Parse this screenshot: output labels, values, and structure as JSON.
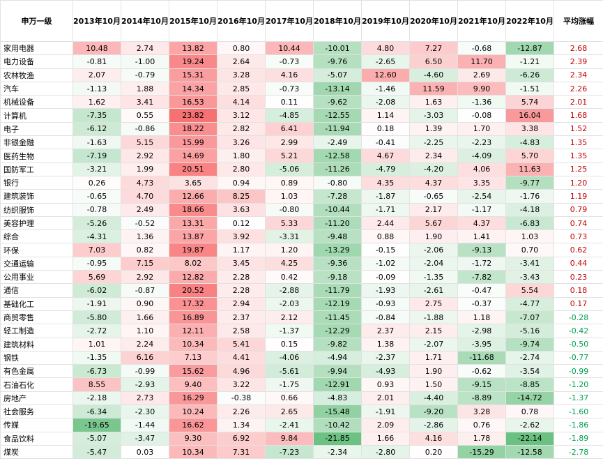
{
  "chart_data": {
    "type": "table",
    "columns": [
      "申万一级",
      "2013年10月",
      "2014年10月",
      "2015年10月",
      "2016年10月",
      "2017年10月",
      "2018年10月",
      "2019年10月",
      "2020年10月",
      "2021年10月",
      "2022年10月",
      "平均涨幅"
    ],
    "rows": [
      {
        "name": "家用电器",
        "values": [
          "10.48",
          "2.74",
          "13.82",
          "0.80",
          "10.44",
          "-10.01",
          "4.80",
          "7.27",
          "-0.68",
          "-12.87"
        ],
        "avg": "2.68"
      },
      {
        "name": "电力设备",
        "values": [
          "-0.81",
          "-1.00",
          "19.24",
          "2.64",
          "-0.73",
          "-9.76",
          "-2.65",
          "6.50",
          "11.70",
          "-1.21"
        ],
        "avg": "2.39"
      },
      {
        "name": "农林牧渔",
        "values": [
          "2.07",
          "-0.79",
          "15.31",
          "3.28",
          "4.16",
          "-5.07",
          "12.60",
          "-4.60",
          "2.69",
          "-6.26"
        ],
        "avg": "2.34"
      },
      {
        "name": "汽车",
        "values": [
          "-1.13",
          "1.88",
          "14.34",
          "2.85",
          "-0.73",
          "-13.14",
          "-1.46",
          "11.59",
          "9.90",
          "-1.51"
        ],
        "avg": "2.26"
      },
      {
        "name": "机械设备",
        "values": [
          "1.62",
          "3.41",
          "16.53",
          "4.14",
          "0.11",
          "-9.62",
          "-2.08",
          "1.63",
          "-1.36",
          "5.74"
        ],
        "avg": "2.01"
      },
      {
        "name": "计算机",
        "values": [
          "-7.35",
          "0.55",
          "23.82",
          "3.12",
          "-4.85",
          "-12.55",
          "1.14",
          "-3.03",
          "-0.08",
          "16.04"
        ],
        "avg": "1.68"
      },
      {
        "name": "电子",
        "values": [
          "-6.12",
          "-0.86",
          "18.22",
          "2.82",
          "6.41",
          "-11.94",
          "0.18",
          "1.39",
          "1.70",
          "3.38"
        ],
        "avg": "1.52"
      },
      {
        "name": "非银金融",
        "values": [
          "-1.63",
          "5.15",
          "15.99",
          "3.26",
          "2.99",
          "-2.49",
          "-0.41",
          "-2.25",
          "-2.23",
          "-4.83"
        ],
        "avg": "1.35"
      },
      {
        "name": "医药生物",
        "values": [
          "-7.19",
          "2.92",
          "14.69",
          "1.80",
          "5.21",
          "-12.58",
          "4.67",
          "2.34",
          "-4.09",
          "5.70"
        ],
        "avg": "1.35"
      },
      {
        "name": "国防军工",
        "values": [
          "-3.21",
          "1.99",
          "20.51",
          "2.80",
          "-5.06",
          "-11.26",
          "-4.79",
          "-4.20",
          "4.06",
          "11.63"
        ],
        "avg": "1.25"
      },
      {
        "name": "银行",
        "values": [
          "0.26",
          "4.73",
          "3.65",
          "0.94",
          "0.89",
          "-0.80",
          "4.35",
          "4.37",
          "3.35",
          "-9.77"
        ],
        "avg": "1.20"
      },
      {
        "name": "建筑装饰",
        "values": [
          "-0.65",
          "4.70",
          "12.66",
          "8.25",
          "1.03",
          "-7.28",
          "-1.87",
          "-0.65",
          "-2.54",
          "-1.76"
        ],
        "avg": "1.19"
      },
      {
        "name": "纺织服饰",
        "values": [
          "-0.78",
          "2.49",
          "18.66",
          "3.63",
          "-0.80",
          "-10.44",
          "-1.71",
          "2.17",
          "-1.17",
          "-4.18"
        ],
        "avg": "0.79"
      },
      {
        "name": "美容护理",
        "values": [
          "-5.26",
          "-0.52",
          "13.31",
          "0.12",
          "5.33",
          "-11.20",
          "2.44",
          "5.67",
          "4.37",
          "-6.83"
        ],
        "avg": "0.74"
      },
      {
        "name": "综合",
        "values": [
          "-4.31",
          "1.36",
          "13.87",
          "3.92",
          "-3.31",
          "-9.48",
          "0.88",
          "1.90",
          "1.41",
          "1.03"
        ],
        "avg": "0.73"
      },
      {
        "name": "环保",
        "values": [
          "7.03",
          "0.82",
          "19.87",
          "1.17",
          "1.20",
          "-13.29",
          "-0.15",
          "-2.06",
          "-9.13",
          "0.70"
        ],
        "avg": "0.62"
      },
      {
        "name": "交通运输",
        "values": [
          "-0.95",
          "7.15",
          "8.02",
          "3.45",
          "4.25",
          "-9.36",
          "-1.02",
          "-2.04",
          "-1.72",
          "-3.41"
        ],
        "avg": "0.44"
      },
      {
        "name": "公用事业",
        "values": [
          "5.69",
          "2.92",
          "12.82",
          "2.28",
          "0.42",
          "-9.18",
          "-0.09",
          "-1.35",
          "-7.82",
          "-3.43"
        ],
        "avg": "0.23"
      },
      {
        "name": "通信",
        "values": [
          "-6.02",
          "-0.87",
          "20.52",
          "2.28",
          "-2.88",
          "-11.79",
          "-1.93",
          "-2.61",
          "-0.47",
          "5.54"
        ],
        "avg": "0.18"
      },
      {
        "name": "基础化工",
        "values": [
          "-1.91",
          "0.90",
          "17.32",
          "2.94",
          "-2.03",
          "-12.19",
          "-0.93",
          "2.75",
          "-0.37",
          "-4.77"
        ],
        "avg": "0.17"
      },
      {
        "name": "商贸零售",
        "values": [
          "-5.80",
          "1.66",
          "16.89",
          "2.37",
          "2.12",
          "-11.45",
          "-0.84",
          "-1.88",
          "1.18",
          "-7.07"
        ],
        "avg": "-0.28"
      },
      {
        "name": "轻工制造",
        "values": [
          "-2.72",
          "1.10",
          "12.11",
          "2.58",
          "-1.37",
          "-12.29",
          "2.37",
          "2.15",
          "-2.98",
          "-5.16"
        ],
        "avg": "-0.42"
      },
      {
        "name": "建筑材料",
        "values": [
          "1.01",
          "2.24",
          "10.34",
          "5.41",
          "0.15",
          "-9.82",
          "1.38",
          "-2.07",
          "-3.95",
          "-9.74"
        ],
        "avg": "-0.50"
      },
      {
        "name": "钢铁",
        "values": [
          "-1.35",
          "6.16",
          "7.13",
          "4.41",
          "-4.06",
          "-4.94",
          "-2.37",
          "1.71",
          "-11.68",
          "-2.74"
        ],
        "avg": "-0.77"
      },
      {
        "name": "有色金属",
        "values": [
          "-6.73",
          "-0.99",
          "15.62",
          "4.96",
          "-5.61",
          "-9.94",
          "-4.93",
          "1.90",
          "-0.62",
          "-3.54"
        ],
        "avg": "-0.99"
      },
      {
        "name": "石油石化",
        "values": [
          "8.55",
          "-2.93",
          "9.40",
          "3.22",
          "-1.75",
          "-12.91",
          "0.93",
          "1.50",
          "-9.15",
          "-8.85"
        ],
        "avg": "-1.20"
      },
      {
        "name": "房地产",
        "values": [
          "-2.18",
          "2.73",
          "16.29",
          "-0.38",
          "0.66",
          "-4.83",
          "2.01",
          "-4.40",
          "-8.89",
          "-14.72"
        ],
        "avg": "-1.37"
      },
      {
        "name": "社会服务",
        "values": [
          "-6.34",
          "-2.30",
          "10.24",
          "2.26",
          "2.65",
          "-15.48",
          "-1.91",
          "-9.20",
          "3.28",
          "0.78"
        ],
        "avg": "-1.60"
      },
      {
        "name": "传媒",
        "values": [
          "-19.65",
          "-1.44",
          "16.62",
          "1.34",
          "-2.41",
          "-10.42",
          "2.09",
          "-2.86",
          "0.76",
          "-2.62"
        ],
        "avg": "-1.86"
      },
      {
        "name": "食品饮料",
        "values": [
          "-5.07",
          "-3.47",
          "9.30",
          "6.92",
          "9.84",
          "-21.85",
          "1.66",
          "4.16",
          "1.78",
          "-22.14"
        ],
        "avg": "-1.89"
      },
      {
        "name": "煤炭",
        "values": [
          "-5.47",
          "0.03",
          "10.34",
          "7.31",
          "-7.23",
          "-2.34",
          "-2.80",
          "0.20",
          "-15.29",
          "-12.58"
        ],
        "avg": "-2.78"
      }
    ],
    "colors": {
      "positive": "#f8696b",
      "negative": "#63be7b",
      "neutral": "#ffffff",
      "avg_positive_text": "#c00000",
      "avg_negative_text": "#00a050"
    }
  }
}
